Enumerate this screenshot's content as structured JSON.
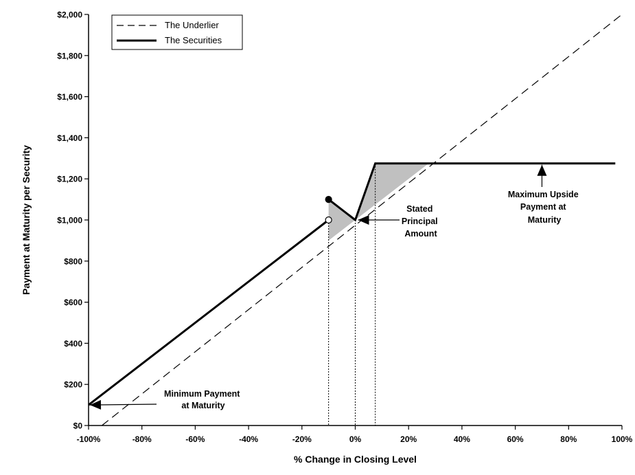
{
  "chart_data": {
    "type": "line",
    "xlabel": "% Change in Closing Level",
    "ylabel": "Payment at Maturity per Security",
    "xlim": [
      -100,
      100
    ],
    "ylim": [
      0,
      2000
    ],
    "x_ticks": [
      -100,
      -80,
      -60,
      -40,
      -20,
      0,
      20,
      40,
      60,
      80,
      100
    ],
    "x_tick_labels": [
      "-100%",
      "-80%",
      "-60%",
      "-40%",
      "-20%",
      "0%",
      "20%",
      "40%",
      "60%",
      "80%",
      "100%"
    ],
    "y_ticks": [
      0,
      200,
      400,
      600,
      800,
      1000,
      1200,
      1400,
      1600,
      1800,
      2000
    ],
    "y_tick_labels": [
      "$0",
      "$200",
      "$400",
      "$600",
      "$800",
      "$1,000",
      "$1,200",
      "$1,400",
      "$1,600",
      "$1,800",
      "$2,000"
    ],
    "grid": false,
    "legend": {
      "placement": "top-left",
      "entries": [
        {
          "label": "The Underlier",
          "style": "dashed"
        },
        {
          "label": "The Securities",
          "style": "solid"
        }
      ]
    },
    "series": [
      {
        "name": "The Underlier",
        "style": "dashed",
        "points": [
          [
            -95,
            0
          ],
          [
            100,
            2000
          ]
        ]
      },
      {
        "name": "The Securities",
        "style": "solid",
        "segments": [
          [
            [
              -100,
              100
            ],
            [
              -10,
              1000
            ]
          ],
          [
            [
              -10,
              1100
            ],
            [
              0,
              1000
            ],
            [
              7.5,
              1275
            ],
            [
              97.5,
              1275
            ]
          ]
        ]
      }
    ],
    "markers": [
      {
        "x": -10,
        "y": 1100,
        "fill": "filled"
      },
      {
        "x": -10,
        "y": 1000,
        "fill": "open"
      }
    ],
    "shaded_regions": [
      [
        [
          -10,
          1100
        ],
        [
          0,
          1000
        ],
        [
          -10,
          900
        ]
      ],
      [
        [
          0,
          1000
        ],
        [
          7.5,
          1275
        ],
        [
          27.5,
          1275
        ]
      ]
    ],
    "reference_lines_x": [
      -10,
      0,
      7.5
    ],
    "annotations": [
      {
        "lines": [
          "Minimum Payment",
          "at Maturity"
        ],
        "arrow_to": [
          -100,
          100
        ]
      },
      {
        "lines": [
          "Stated",
          "Principal",
          "Amount"
        ],
        "arrow_to": [
          0,
          1000
        ]
      },
      {
        "lines": [
          "Maximum Upside",
          "Payment at",
          "Maturity"
        ],
        "arrow_to": [
          70,
          1275
        ]
      }
    ]
  },
  "colors": {
    "line": "#000000",
    "shade": "#c0c0c0",
    "background": "#ffffff"
  }
}
